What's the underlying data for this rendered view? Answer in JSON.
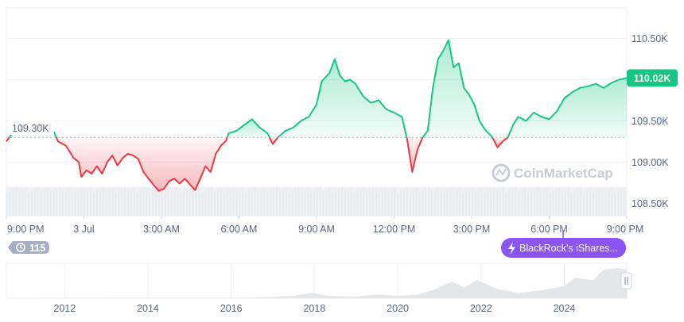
{
  "chart_data": {
    "type": "line",
    "title": "",
    "xlabel": "",
    "ylabel": "",
    "baseline": 109300,
    "baseline_label": "109.30K",
    "current_price": 110020,
    "current_price_label": "110.02K",
    "ylim": [
      108350,
      110870
    ],
    "y_ticks": [
      {
        "value": 108500,
        "label": "108.50K"
      },
      {
        "value": 109000,
        "label": "109.00K"
      },
      {
        "value": 109500,
        "label": "109.50K"
      },
      {
        "value": 110000,
        "label": "110.00K"
      },
      {
        "value": 110500,
        "label": "110.50K"
      }
    ],
    "xlim_hours": [
      0,
      24
    ],
    "x_ticks": [
      {
        "hour": 0,
        "label": "9:00 PM"
      },
      {
        "hour": 3,
        "label": "3 Jul"
      },
      {
        "hour": 6,
        "label": "3:00 AM"
      },
      {
        "hour": 9,
        "label": "6:00 AM"
      },
      {
        "hour": 12,
        "label": "9:00 AM"
      },
      {
        "hour": 15,
        "label": "12:00 PM"
      },
      {
        "hour": 18,
        "label": "3:00 PM"
      },
      {
        "hour": 21,
        "label": "6:00 PM"
      },
      {
        "hour": 24,
        "label": "9:00 PM"
      }
    ],
    "price_series": {
      "name": "Price",
      "points": [
        [
          0.0,
          109250
        ],
        [
          0.3,
          109380
        ],
        [
          0.6,
          109420
        ],
        [
          0.9,
          109360
        ],
        [
          1.05,
          109480
        ],
        [
          1.2,
          109350
        ],
        [
          1.5,
          109390
        ],
        [
          1.7,
          109450
        ],
        [
          1.85,
          109360
        ],
        [
          2.0,
          109250
        ],
        [
          2.3,
          109200
        ],
        [
          2.6,
          109050
        ],
        [
          2.8,
          109000
        ],
        [
          2.9,
          108820
        ],
        [
          3.1,
          108900
        ],
        [
          3.3,
          108860
        ],
        [
          3.5,
          108950
        ],
        [
          3.7,
          108860
        ],
        [
          3.9,
          109000
        ],
        [
          4.1,
          109080
        ],
        [
          4.3,
          108960
        ],
        [
          4.5,
          109050
        ],
        [
          4.7,
          109100
        ],
        [
          4.9,
          109080
        ],
        [
          5.1,
          109040
        ],
        [
          5.3,
          108880
        ],
        [
          5.5,
          108800
        ],
        [
          5.7,
          108720
        ],
        [
          5.9,
          108650
        ],
        [
          6.1,
          108680
        ],
        [
          6.3,
          108770
        ],
        [
          6.5,
          108800
        ],
        [
          6.7,
          108740
        ],
        [
          6.9,
          108800
        ],
        [
          7.1,
          108730
        ],
        [
          7.3,
          108660
        ],
        [
          7.5,
          108800
        ],
        [
          7.7,
          108950
        ],
        [
          7.9,
          108880
        ],
        [
          8.1,
          109100
        ],
        [
          8.3,
          109200
        ],
        [
          8.5,
          109260
        ],
        [
          8.6,
          109350
        ],
        [
          8.9,
          109380
        ],
        [
          9.2,
          109450
        ],
        [
          9.5,
          109520
        ],
        [
          9.8,
          109420
        ],
        [
          10.1,
          109350
        ],
        [
          10.3,
          109220
        ],
        [
          10.5,
          109300
        ],
        [
          10.8,
          109380
        ],
        [
          11.1,
          109420
        ],
        [
          11.4,
          109500
        ],
        [
          11.7,
          109550
        ],
        [
          12.0,
          109700
        ],
        [
          12.2,
          109980
        ],
        [
          12.5,
          110080
        ],
        [
          12.7,
          110250
        ],
        [
          12.9,
          110050
        ],
        [
          13.1,
          109980
        ],
        [
          13.3,
          110000
        ],
        [
          13.5,
          109950
        ],
        [
          13.8,
          109800
        ],
        [
          14.1,
          109720
        ],
        [
          14.4,
          109750
        ],
        [
          14.7,
          109640
        ],
        [
          15.0,
          109600
        ],
        [
          15.3,
          109550
        ],
        [
          15.5,
          109280
        ],
        [
          15.7,
          108880
        ],
        [
          15.9,
          109150
        ],
        [
          16.1,
          109300
        ],
        [
          16.3,
          109380
        ],
        [
          16.5,
          109900
        ],
        [
          16.7,
          110250
        ],
        [
          16.9,
          110350
        ],
        [
          17.1,
          110480
        ],
        [
          17.3,
          110150
        ],
        [
          17.5,
          110200
        ],
        [
          17.7,
          109900
        ],
        [
          17.9,
          109820
        ],
        [
          18.1,
          109700
        ],
        [
          18.3,
          109500
        ],
        [
          18.5,
          109400
        ],
        [
          18.8,
          109300
        ],
        [
          19.0,
          109180
        ],
        [
          19.2,
          109250
        ],
        [
          19.4,
          109300
        ],
        [
          19.6,
          109450
        ],
        [
          19.8,
          109550
        ],
        [
          20.1,
          109500
        ],
        [
          20.4,
          109600
        ],
        [
          20.7,
          109550
        ],
        [
          21.0,
          109520
        ],
        [
          21.3,
          109620
        ],
        [
          21.6,
          109780
        ],
        [
          21.9,
          109850
        ],
        [
          22.2,
          109900
        ],
        [
          22.5,
          109920
        ],
        [
          22.8,
          109950
        ],
        [
          23.1,
          109900
        ],
        [
          23.4,
          109960
        ],
        [
          23.7,
          110000
        ],
        [
          24.0,
          110020
        ]
      ]
    },
    "overview_series": {
      "name": "History",
      "x_ticks": [
        {
          "year": 2012,
          "label": "2012"
        },
        {
          "year": 2014,
          "label": "2014"
        },
        {
          "year": 2016,
          "label": "2016"
        },
        {
          "year": 2018,
          "label": "2018"
        },
        {
          "year": 2020,
          "label": "2020"
        },
        {
          "year": 2022,
          "label": "2022"
        },
        {
          "year": 2024,
          "label": "2024"
        }
      ],
      "xlim_years": [
        2010.6,
        2025.5
      ],
      "points": [
        [
          2010.6,
          0
        ],
        [
          2013.0,
          0.005
        ],
        [
          2014.0,
          0.01
        ],
        [
          2015.5,
          0.01
        ],
        [
          2016.5,
          0.02
        ],
        [
          2017.5,
          0.08
        ],
        [
          2017.95,
          0.18
        ],
        [
          2018.3,
          0.08
        ],
        [
          2019.0,
          0.05
        ],
        [
          2019.5,
          0.12
        ],
        [
          2020.0,
          0.08
        ],
        [
          2020.5,
          0.12
        ],
        [
          2020.9,
          0.3
        ],
        [
          2021.3,
          0.55
        ],
        [
          2021.6,
          0.35
        ],
        [
          2021.9,
          0.6
        ],
        [
          2022.4,
          0.3
        ],
        [
          2022.9,
          0.17
        ],
        [
          2023.5,
          0.27
        ],
        [
          2024.0,
          0.4
        ],
        [
          2024.25,
          0.67
        ],
        [
          2024.7,
          0.6
        ],
        [
          2024.95,
          0.95
        ],
        [
          2025.3,
          1.0
        ],
        [
          2025.5,
          0.97
        ]
      ]
    },
    "colors": {
      "up": "#16c784",
      "down": "#ea3943",
      "overview": "#d8dbe0",
      "volume": "#eef0f3"
    }
  },
  "badges": {
    "comments_count": "115",
    "comments_icon": "history-icon",
    "event_label": "BlackRock's iShares...",
    "event_icon": "lightning-icon"
  },
  "watermark": {
    "text": "CoinMarketCap",
    "icon": "coinmarketcap-logo-icon"
  }
}
